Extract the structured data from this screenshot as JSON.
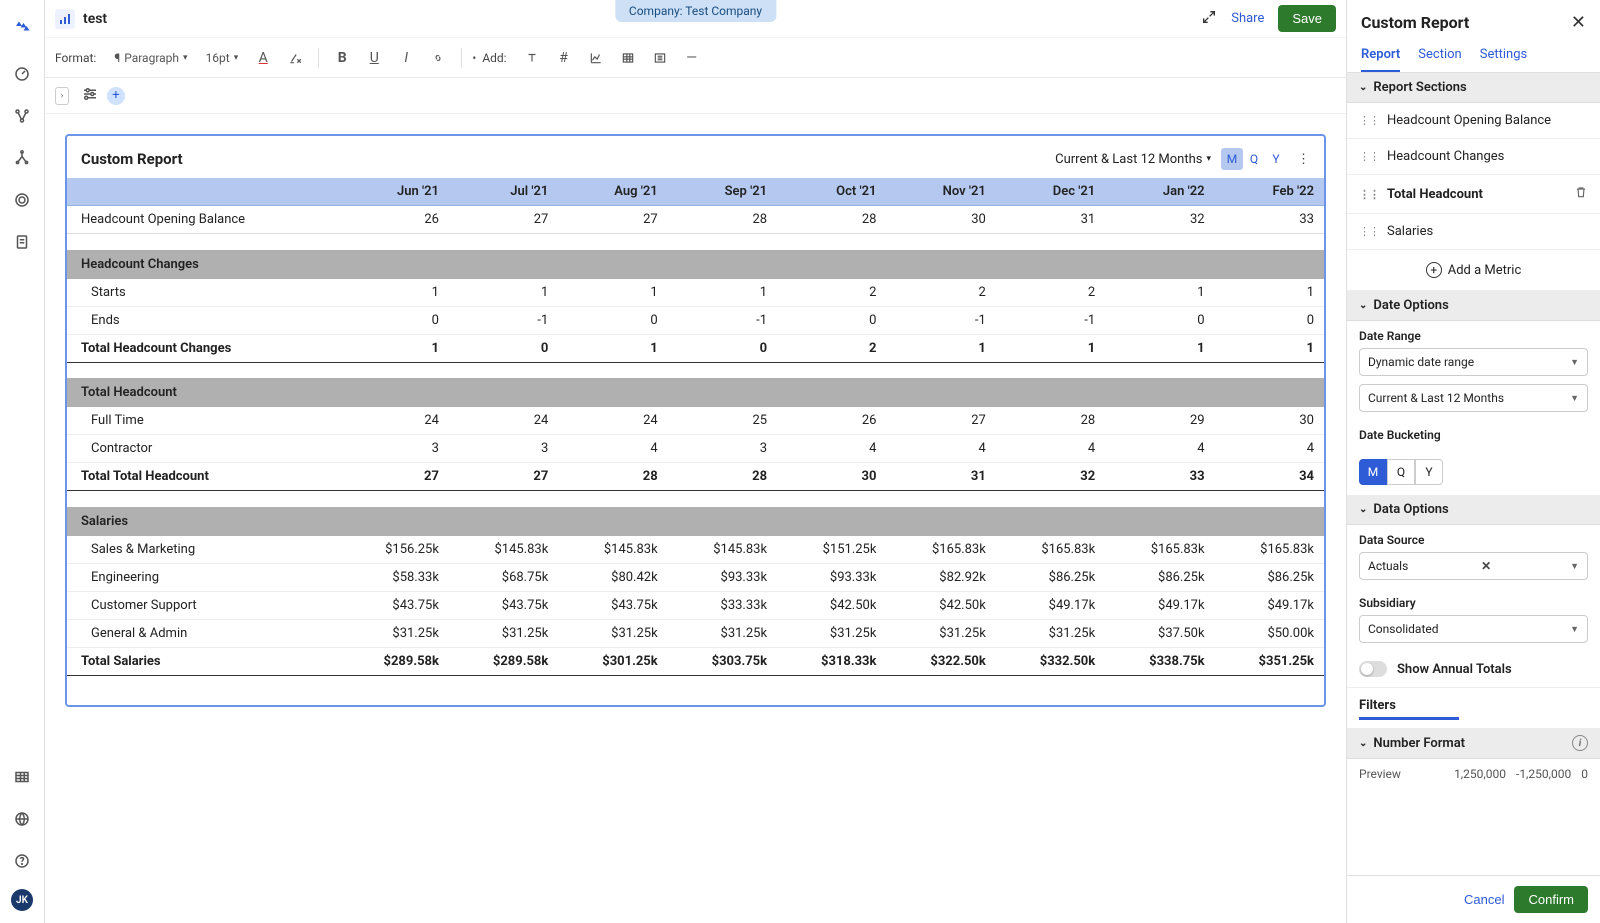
{
  "topbar": {
    "doc_title": "test",
    "company_pill": "Company: Test Company",
    "share": "Share",
    "save": "Save"
  },
  "format": {
    "label": "Format:",
    "paragraph": "Paragraph",
    "fontsize": "16pt",
    "add_label": "Add:"
  },
  "report": {
    "title": "Custom Report",
    "range": "Current & Last 12 Months",
    "buckets": [
      "M",
      "Q",
      "Y"
    ],
    "bucket_active": "M",
    "columns": [
      "Jun '21",
      "Jul '21",
      "Aug '21",
      "Sep '21",
      "Oct '21",
      "Nov '21",
      "Dec '21",
      "Jan '22",
      "Feb '22"
    ],
    "opening_label": "Headcount Opening Balance",
    "opening_values": [
      "26",
      "27",
      "27",
      "28",
      "28",
      "30",
      "31",
      "32",
      "33"
    ],
    "sections": [
      {
        "title": "Headcount Changes",
        "rows": [
          {
            "label": "Starts",
            "values": [
              "1",
              "1",
              "1",
              "1",
              "2",
              "2",
              "2",
              "1",
              "1"
            ]
          },
          {
            "label": "Ends",
            "values": [
              "0",
              "-1",
              "0",
              "-1",
              "0",
              "-1",
              "-1",
              "0",
              "0"
            ]
          }
        ],
        "total_label": "Total Headcount Changes",
        "total_values": [
          "1",
          "0",
          "1",
          "0",
          "2",
          "1",
          "1",
          "1",
          "1"
        ]
      },
      {
        "title": "Total Headcount",
        "rows": [
          {
            "label": "Full Time",
            "values": [
              "24",
              "24",
              "24",
              "25",
              "26",
              "27",
              "28",
              "29",
              "30"
            ]
          },
          {
            "label": "Contractor",
            "values": [
              "3",
              "3",
              "4",
              "3",
              "4",
              "4",
              "4",
              "4",
              "4"
            ]
          }
        ],
        "total_label": "Total Total Headcount",
        "total_values": [
          "27",
          "27",
          "28",
          "28",
          "30",
          "31",
          "32",
          "33",
          "34"
        ]
      },
      {
        "title": "Salaries",
        "rows": [
          {
            "label": "Sales & Marketing",
            "values": [
              "$156.25k",
              "$145.83k",
              "$145.83k",
              "$145.83k",
              "$151.25k",
              "$165.83k",
              "$165.83k",
              "$165.83k",
              "$165.83k"
            ]
          },
          {
            "label": "Engineering",
            "values": [
              "$58.33k",
              "$68.75k",
              "$80.42k",
              "$93.33k",
              "$93.33k",
              "$82.92k",
              "$86.25k",
              "$86.25k",
              "$86.25k"
            ]
          },
          {
            "label": "Customer Support",
            "values": [
              "$43.75k",
              "$43.75k",
              "$43.75k",
              "$33.33k",
              "$42.50k",
              "$42.50k",
              "$49.17k",
              "$49.17k",
              "$49.17k"
            ]
          },
          {
            "label": "General & Admin",
            "values": [
              "$31.25k",
              "$31.25k",
              "$31.25k",
              "$31.25k",
              "$31.25k",
              "$31.25k",
              "$31.25k",
              "$37.50k",
              "$50.00k"
            ]
          }
        ],
        "total_label": "Total Salaries",
        "total_values": [
          "$289.58k",
          "$289.58k",
          "$301.25k",
          "$303.75k",
          "$318.33k",
          "$322.50k",
          "$332.50k",
          "$338.75k",
          "$351.25k"
        ]
      }
    ]
  },
  "panel": {
    "title": "Custom Report",
    "tabs": [
      "Report",
      "Section",
      "Settings"
    ],
    "tab_active": "Report",
    "sections_header": "Report Sections",
    "metrics": [
      "Headcount Opening Balance",
      "Headcount Changes",
      "Total Headcount",
      "Salaries"
    ],
    "metric_highlight": "Total Headcount",
    "add_metric": "Add a Metric",
    "date_options": "Date Options",
    "date_range_label": "Date Range",
    "date_range_value": "Dynamic date range",
    "date_range_preset": "Current & Last 12 Months",
    "bucketing_label": "Date Bucketing",
    "buckets": [
      "M",
      "Q",
      "Y"
    ],
    "bucket_active": "M",
    "data_options": "Data Options",
    "data_source_label": "Data Source",
    "data_source_value": "Actuals",
    "subsidiary_label": "Subsidiary",
    "subsidiary_value": "Consolidated",
    "annual_totals": "Show Annual Totals",
    "filters": "Filters",
    "number_format": "Number Format",
    "preview_label": "Preview",
    "preview_pos": "1,250,000",
    "preview_neg": "-1,250,000",
    "preview_zero": "0",
    "cancel": "Cancel",
    "confirm": "Confirm"
  },
  "avatar": "JK",
  "colors": {
    "accent": "#2e5bd6",
    "save_green": "#2d7a2d",
    "header_blue": "#b5c9f0",
    "section_grey": "#b0b0b0"
  }
}
